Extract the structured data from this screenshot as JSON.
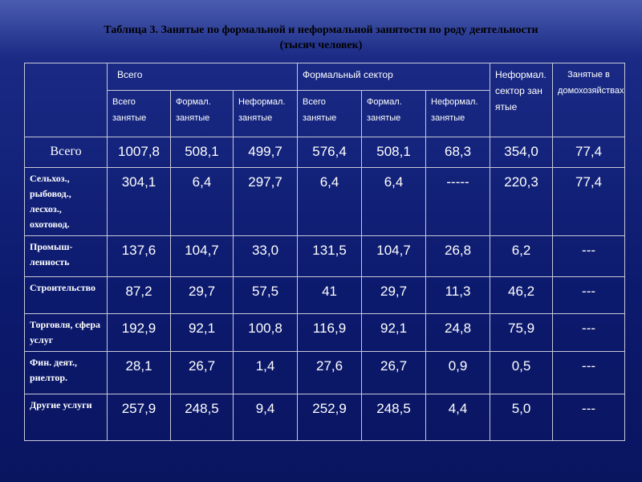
{
  "header": {
    "title": "Таблица 3. Занятые по формальной и неформальной занятости по роду деятельности",
    "subtitle": "(тысяч человек)"
  },
  "table": {
    "groups": [
      "Всего",
      "Формальный сектор",
      "Неформал. сектор занятые",
      "Занятые в домохозяйствах"
    ],
    "subheaders": [
      "Всего занятые",
      "Формал. занятые",
      "Неформал. занятые",
      "Всего занятые",
      "Формал. занятые",
      "Неформал. занятые"
    ],
    "rows": [
      [
        "Всего",
        "1007,8",
        "508,1",
        "499,7",
        "576,4",
        "508,1",
        "68,3",
        "354,0",
        "77,4"
      ],
      [
        "Сельхоз., рыбовод., лесхоз., охотовод.",
        "304,1",
        "6,4",
        "297,7",
        "6,4",
        "6,4",
        "-----",
        "220,3",
        "77,4"
      ],
      [
        "Промыш-ленность",
        "137,6",
        "104,7",
        "33,0",
        "131,5",
        "104,7",
        "26,8",
        "6,2",
        "---"
      ],
      [
        "Строительство",
        "87,2",
        "29,7",
        "57,5",
        "41",
        "29,7",
        "11,3",
        "46,2",
        "---"
      ],
      [
        "Торговля, сфера услуг",
        "192,9",
        "92,1",
        "100,8",
        "116,9",
        "92,1",
        "24,8",
        "75,9",
        "---"
      ],
      [
        "Фин. деят., риелтор.",
        "28,1",
        "26,7",
        "1,4",
        "27,6",
        "26,7",
        "0,9",
        "0,5",
        "---"
      ],
      [
        "Другие услуги",
        "257,9",
        "248,5",
        "9,4",
        "252,9",
        "248,5",
        "4,4",
        "5,0",
        "---"
      ]
    ]
  }
}
